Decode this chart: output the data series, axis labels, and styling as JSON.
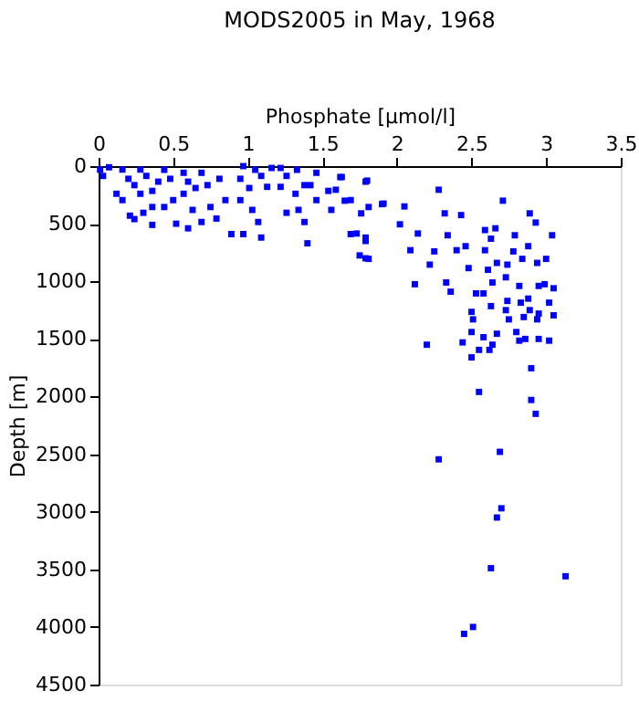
{
  "chart_data": {
    "type": "scatter",
    "title": "MODS2005 in May, 1968",
    "xlabel": "Phosphate [µmol/l]",
    "ylabel": "Depth [m]",
    "xlim": [
      0,
      3.5
    ],
    "xticks": [
      0,
      0.5,
      1,
      1.5,
      2,
      2.5,
      3,
      3.5
    ],
    "ylim": [
      4500,
      0
    ],
    "yticks": [
      0,
      500,
      1000,
      1500,
      2000,
      2500,
      3000,
      3500,
      4000,
      4500
    ],
    "grid": false,
    "marker": "square",
    "series": [
      {
        "color": "#0000ff",
        "x": [
          2.9,
          2.55,
          2.9,
          2.93,
          2.69,
          2.28,
          2.7,
          2.67,
          2.63,
          3.13,
          2.51,
          2.45,
          1.63,
          1.8,
          1.59,
          1.65,
          2.28,
          2.71,
          2.05,
          1.9,
          1.76,
          2.32,
          2.43,
          2.89,
          2.02,
          1.73,
          1.79,
          2.14,
          2.34,
          2.59,
          2.66,
          2.93,
          3.04,
          2.63,
          2.79,
          2.78,
          2.88,
          2.46,
          2.09,
          2.25,
          1.81,
          1.75,
          2.22,
          2.4,
          2.59,
          2.67,
          2.84,
          2.94,
          3.0,
          2.61,
          2.74,
          2.48,
          2.12,
          2.33,
          2.36,
          2.64,
          2.73,
          2.95,
          2.99,
          3.05,
          2.82,
          2.53,
          2.58,
          2.74,
          2.83,
          2.88,
          3.02,
          2.63,
          2.73,
          2.89,
          2.95,
          3.05,
          2.5,
          2.51,
          2.75,
          2.85,
          2.94,
          2.8,
          2.86,
          2.95,
          3.02,
          2.82,
          2.5,
          2.67,
          2.58,
          2.44,
          2.64,
          2.2,
          2.62,
          2.55,
          2.5,
          0.97,
          1.16,
          1.22,
          1.33,
          1.46,
          1.62,
          1.09,
          1.01,
          1.13,
          1.22,
          1.38,
          1.32,
          1.46,
          1.54,
          1.69,
          0.85,
          0.95,
          1.03,
          1.07,
          0.79,
          0.69,
          0.6,
          0.52,
          0.36,
          0.24,
          0.89,
          0.97,
          1.09,
          1.26,
          1.38,
          1.4,
          1.56,
          1.34,
          0.63,
          0.75,
          0.44,
          0.3,
          0.21,
          0.12,
          0.16,
          0.28,
          0.36,
          0.57,
          0.65,
          0.69,
          0.81,
          0.57,
          0.44,
          0.32,
          0.2,
          0.07,
          0.03,
          0.01,
          0.16,
          0.28,
          0.4,
          0.48,
          0.6,
          0.73,
          0.95,
          1.05,
          1.26,
          1.42,
          1.79,
          1.81,
          1.91,
          1.69,
          1.79,
          1.79,
          0.24,
          0.36,
          0.5
        ],
        "values": [
          1754,
          1960,
          2030,
          2150,
          2480,
          2545,
          2970,
          3050,
          3490,
          3560,
          4000,
          4060,
          95,
          126,
          205,
          300,
          205,
          300,
          350,
          330,
          410,
          410,
          425,
          410,
          505,
          585,
          650,
          585,
          600,
          555,
          540,
          490,
          600,
          630,
          600,
          740,
          695,
          695,
          730,
          740,
          805,
          775,
          855,
          730,
          730,
          840,
          805,
          840,
          805,
          900,
          855,
          885,
          1025,
          1010,
          1090,
          1010,
          965,
          1040,
          1025,
          1060,
          1040,
          1105,
          1105,
          1170,
          1185,
          1150,
          1185,
          1215,
          1250,
          1250,
          1280,
          1295,
          1265,
          1330,
          1330,
          1310,
          1330,
          1440,
          1500,
          1500,
          1515,
          1515,
          1440,
          1455,
          1485,
          1530,
          1550,
          1550,
          1595,
          1595,
          1660,
          0,
          16,
          16,
          32,
          58,
          95,
          85,
          190,
          180,
          180,
          165,
          240,
          295,
          215,
          295,
          295,
          295,
          380,
          485,
          455,
          485,
          540,
          500,
          510,
          460,
          590,
          590,
          620,
          405,
          485,
          670,
          380,
          380,
          380,
          355,
          355,
          405,
          430,
          240,
          295,
          240,
          215,
          240,
          190,
          58,
          110,
          58,
          32,
          85,
          110,
          10,
          85,
          30,
          30,
          30,
          135,
          110,
          135,
          165,
          110,
          32,
          85,
          165,
          135,
          355,
          325,
          590,
          620,
          800,
          165,
          355,
          295
        ]
      }
    ]
  }
}
